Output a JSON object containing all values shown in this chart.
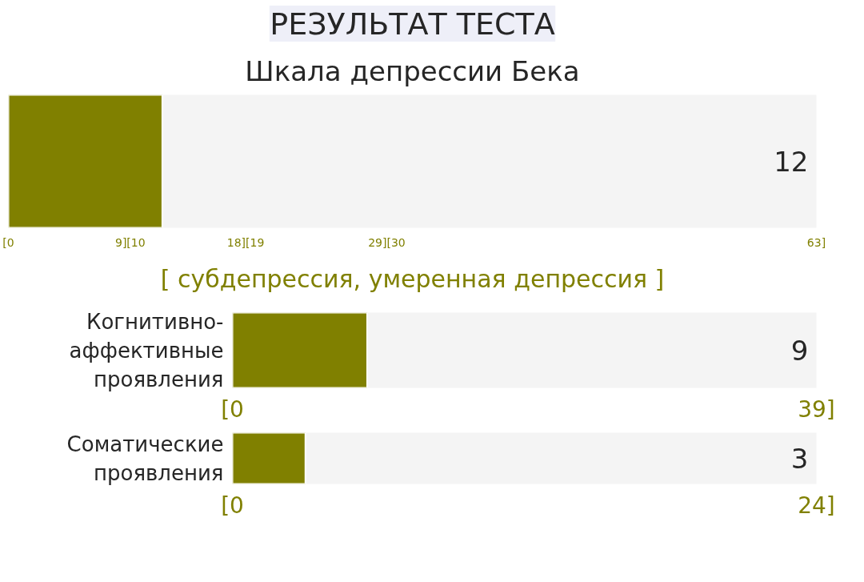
{
  "chart_data": [
    {
      "type": "bar",
      "orientation": "horizontal",
      "title": "РЕЗУЛЬТАТ ТЕСТА",
      "subtitle": "Шкала депрессии Бека",
      "categories": [
        null
      ],
      "values": [
        12
      ],
      "color": "#808000",
      "xlim": [
        0,
        63
      ],
      "xticks": [
        {
          "value": 0,
          "label": "[0"
        },
        {
          "value": 9.5,
          "label": "9][10"
        },
        {
          "value": 18.5,
          "label": "18][19"
        },
        {
          "value": 29.5,
          "label": "29][30"
        },
        {
          "value": 63,
          "label": "63]"
        }
      ],
      "tick_labels": "x",
      "annotations": [
        "[ субдепрессия, умеренная депрессия ]",
        "12"
      ]
    },
    {
      "type": "bar",
      "orientation": "horizontal",
      "categories": [
        "Когнитивно-аффективные проявления"
      ],
      "values": [
        9
      ],
      "color": "#808000",
      "xlim": [
        0,
        39
      ],
      "xticks": [
        {
          "value": 0,
          "label": "[0"
        },
        {
          "value": 39,
          "label": "39]"
        }
      ],
      "annotations": [
        "9"
      ]
    },
    {
      "type": "bar",
      "orientation": "horizontal",
      "categories": [
        "Соматические проявления"
      ],
      "values": [
        3
      ],
      "color": "#808000",
      "xlim": [
        0,
        24
      ],
      "xticks": [
        {
          "value": 0,
          "label": "[0"
        },
        {
          "value": 24,
          "label": "24]"
        }
      ],
      "annotations": [
        "3"
      ]
    }
  ]
}
